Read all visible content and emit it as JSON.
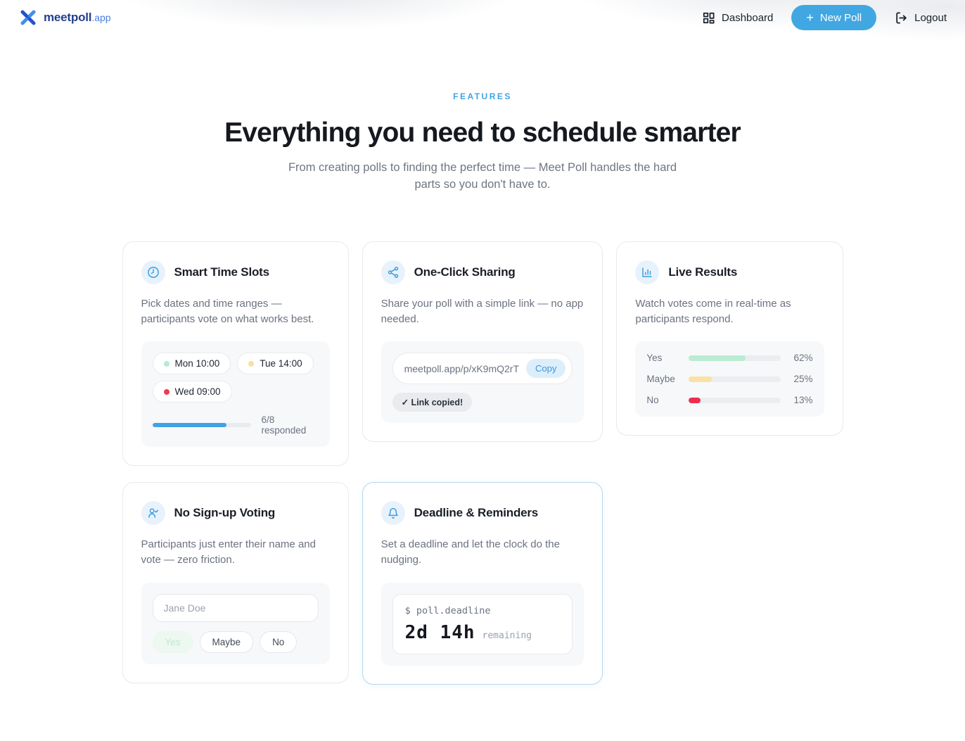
{
  "header": {
    "brand": {
      "name": "meetpoll",
      "suffix": ".app"
    },
    "nav": {
      "dashboard": "Dashboard",
      "new_poll": "New Poll",
      "logout": "Logout"
    }
  },
  "hero": {
    "eyebrow": "FEATURES",
    "title": "Everything you need to schedule smarter",
    "subtitle": "From creating polls to finding the perfect time — Meet Poll handles the hard parts so you don't have to."
  },
  "cards": {
    "smart_time_slots": {
      "title": "Smart Time Slots",
      "description": "Pick dates and time ranges — participants vote on what works best.",
      "chips": [
        {
          "label": "Mon 10:00",
          "dot_color": "#b5ebd0"
        },
        {
          "label": "Tue 14:00",
          "dot_color": "#f8e0a2"
        },
        {
          "label": "Wed 09:00",
          "dot_color": "#ee3b52"
        }
      ],
      "progress": {
        "value": 75,
        "label": "6/8 responded"
      }
    },
    "one_click_sharing": {
      "title": "One-Click Sharing",
      "description": "Share your poll with a simple link — no app needed.",
      "link": "meetpoll.app/p/xK9mQ2rT",
      "copy_label": "Copy",
      "copied_label": "✓ Link copied!"
    },
    "live_results": {
      "title": "Live Results",
      "description": "Watch votes come in real-time as participants respond.",
      "bars": [
        {
          "label": "Yes",
          "value": 62,
          "pct": "62%",
          "color": "#b9ecd2"
        },
        {
          "label": "Maybe",
          "value": 25,
          "pct": "25%",
          "color": "#f8e2a4"
        },
        {
          "label": "No",
          "value": 13,
          "pct": "13%",
          "color": "#ee2d4e"
        }
      ]
    },
    "no_signup_voting": {
      "title": "No Sign-up Voting",
      "description": "Participants just enter their name and vote — zero friction.",
      "input_placeholder": "Jane Doe",
      "options": [
        {
          "label": "Yes"
        },
        {
          "label": "Maybe"
        },
        {
          "label": "No"
        }
      ]
    },
    "deadline_reminders": {
      "title": "Deadline & Reminders",
      "description": "Set a deadline and let the clock do the nudging.",
      "terminal": {
        "command": "$ poll.deadline",
        "countdown": "2d 14h",
        "suffix": "remaining"
      }
    }
  },
  "colors": {
    "accent": "#41a7e2",
    "progress_fill": "#3fa3e3",
    "highlight_border": "#b3d8f0"
  }
}
